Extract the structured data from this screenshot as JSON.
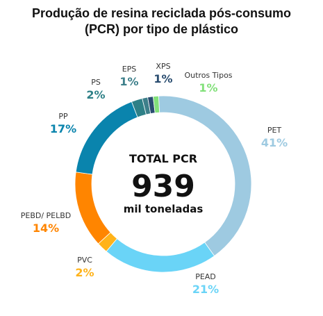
{
  "chart_data": {
    "type": "pie",
    "variant": "donut",
    "title_lines": [
      "Produção de resina reciclada pós-consumo",
      "(PCR) por tipo de plástico"
    ],
    "center": {
      "label": "TOTAL PCR",
      "value": "939",
      "unit": "mil toneladas"
    },
    "slices": [
      {
        "name": "PET",
        "value": 41,
        "label": "41%",
        "color": "#9ecae1",
        "text_color": "#9ecae1"
      },
      {
        "name": "PEAD",
        "value": 21,
        "label": "21%",
        "color": "#6ad4f7",
        "text_color": "#6ad4f7"
      },
      {
        "name": "PVC",
        "value": 2,
        "label": "2%",
        "color": "#ffb31a",
        "text_color": "#ffb31a"
      },
      {
        "name": "PEBD/ PELBD",
        "value": 14,
        "label": "14%",
        "color": "#ff8500",
        "text_color": "#ff8500"
      },
      {
        "name": "PP",
        "value": 17,
        "label": "17%",
        "color": "#0a84ad",
        "text_color": "#0a84ad"
      },
      {
        "name": "PS",
        "value": 2,
        "label": "2%",
        "color": "#2e8087",
        "text_color": "#2e8087"
      },
      {
        "name": "EPS",
        "value": 1,
        "label": "1%",
        "color": "#3d7f8a",
        "text_color": "#3d7f8a"
      },
      {
        "name": "XPS",
        "value": 1,
        "label": "1%",
        "color": "#2a4d70",
        "text_color": "#2a4d70"
      },
      {
        "name": "Outros Tipos",
        "value": 1,
        "label": "1%",
        "color": "#82e07a",
        "text_color": "#82e07a"
      }
    ]
  }
}
